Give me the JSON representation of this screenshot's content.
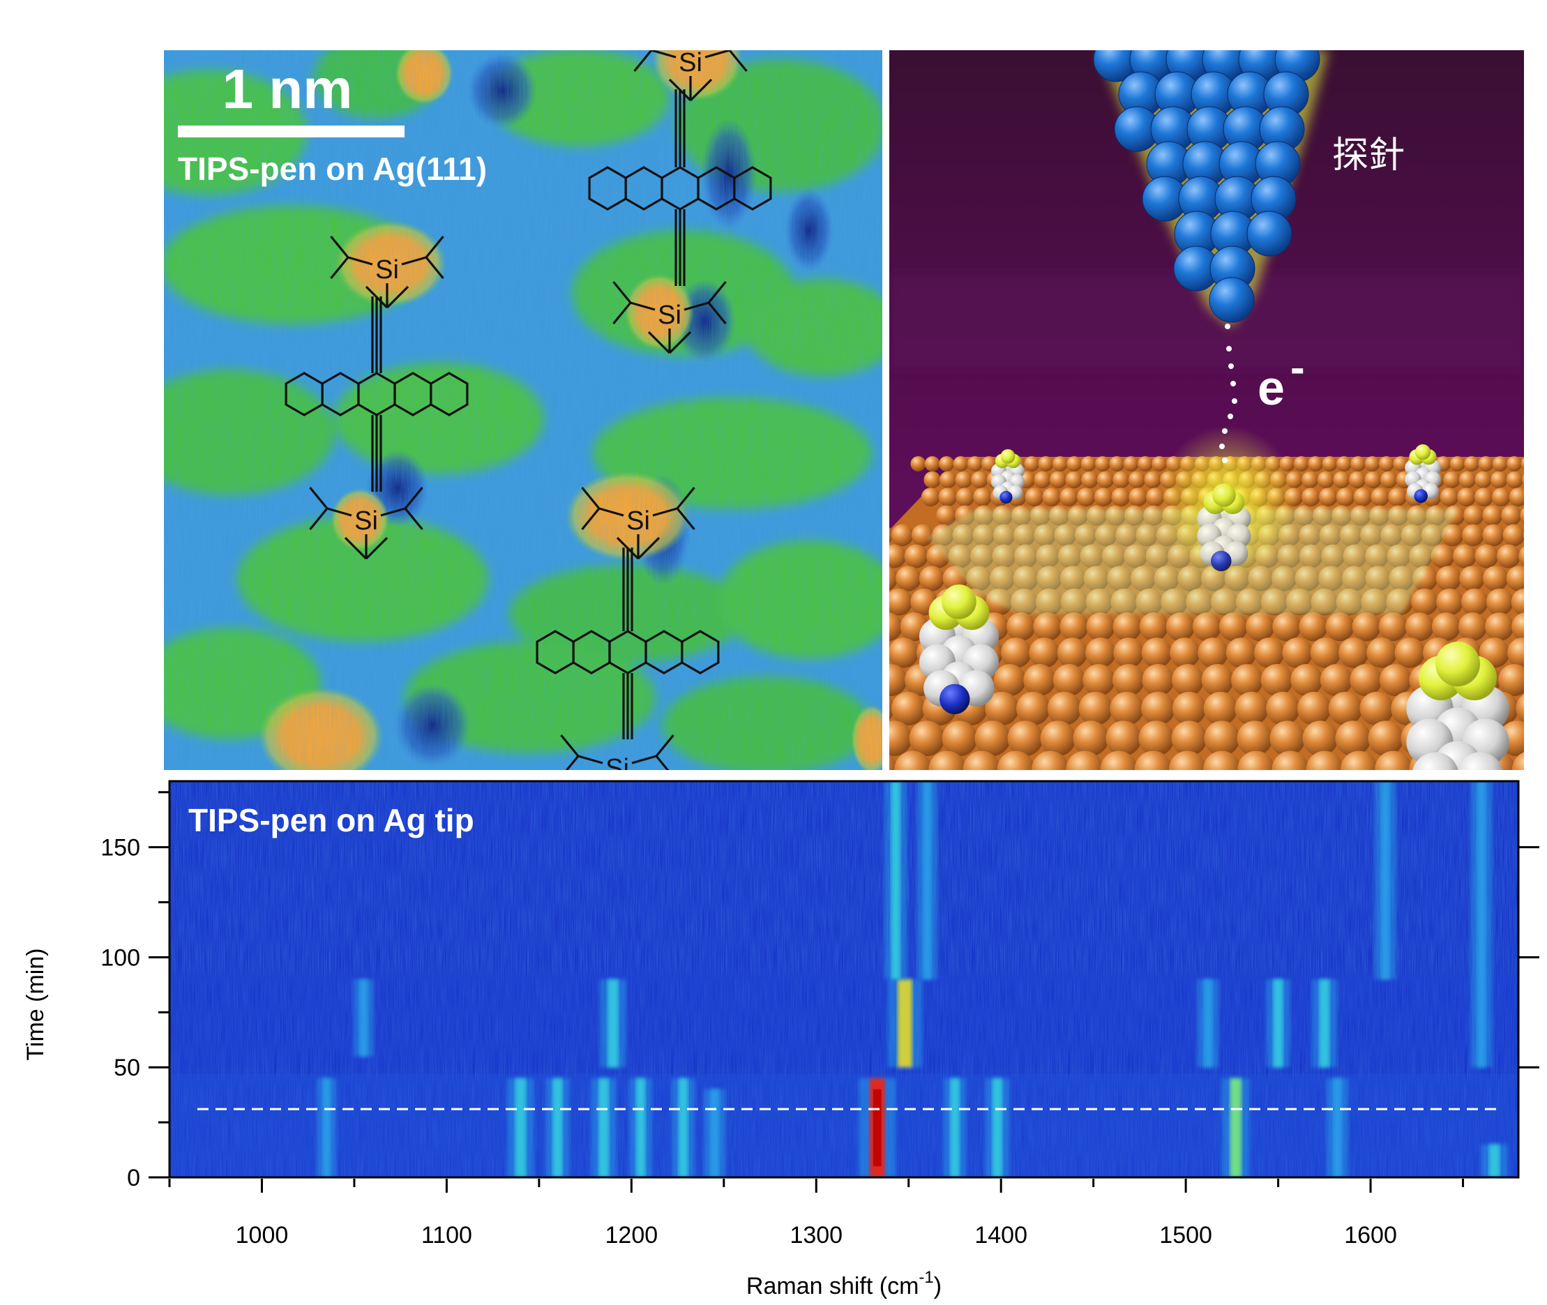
{
  "panel_stm": {
    "scale_bar_label": "1 nm",
    "caption": "TIPS-pen on Ag(111)",
    "atom_label": "Si"
  },
  "panel_tip": {
    "probe_label": "探針",
    "electron_label": "e",
    "electron_superscript": "-"
  },
  "chart_data": {
    "type": "heatmap",
    "title": "TIPS-pen on Ag tip",
    "xlabel": "Raman shift (cm",
    "xlabel_superscript": "-1",
    "xlabel_suffix": ")",
    "ylabel": "Time (min)",
    "xlim": [
      950,
      1680
    ],
    "ylim": [
      0,
      180
    ],
    "x_ticks": [
      1000,
      1100,
      1200,
      1300,
      1400,
      1500,
      1600
    ],
    "y_ticks": [
      0,
      50,
      100,
      150
    ],
    "dashed_line_time": 31,
    "bands": [
      {
        "shift": 1035,
        "t0": 0,
        "t1": 45,
        "intensity": 0.25
      },
      {
        "shift": 1055,
        "t0": 55,
        "t1": 90,
        "intensity": 0.3
      },
      {
        "shift": 1140,
        "t0": 0,
        "t1": 45,
        "intensity": 0.55
      },
      {
        "shift": 1160,
        "t0": 0,
        "t1": 45,
        "intensity": 0.45
      },
      {
        "shift": 1185,
        "t0": 0,
        "t1": 45,
        "intensity": 0.5
      },
      {
        "shift": 1190,
        "t0": 50,
        "t1": 90,
        "intensity": 0.55
      },
      {
        "shift": 1205,
        "t0": 0,
        "t1": 45,
        "intensity": 0.4
      },
      {
        "shift": 1228,
        "t0": 0,
        "t1": 45,
        "intensity": 0.4
      },
      {
        "shift": 1245,
        "t0": 0,
        "t1": 40,
        "intensity": 0.35
      },
      {
        "shift": 1333,
        "t0": 0,
        "t1": 45,
        "intensity": 1.0
      },
      {
        "shift": 1348,
        "t0": 50,
        "t1": 90,
        "intensity": 0.9
      },
      {
        "shift": 1343,
        "t0": 90,
        "t1": 180,
        "intensity": 0.4
      },
      {
        "shift": 1360,
        "t0": 90,
        "t1": 180,
        "intensity": 0.3
      },
      {
        "shift": 1375,
        "t0": 0,
        "t1": 45,
        "intensity": 0.4
      },
      {
        "shift": 1398,
        "t0": 0,
        "t1": 45,
        "intensity": 0.45
      },
      {
        "shift": 1512,
        "t0": 50,
        "t1": 90,
        "intensity": 0.35
      },
      {
        "shift": 1527,
        "t0": 0,
        "t1": 45,
        "intensity": 0.6
      },
      {
        "shift": 1550,
        "t0": 50,
        "t1": 90,
        "intensity": 0.45
      },
      {
        "shift": 1575,
        "t0": 50,
        "t1": 90,
        "intensity": 0.5
      },
      {
        "shift": 1582,
        "t0": 0,
        "t1": 45,
        "intensity": 0.35
      },
      {
        "shift": 1608,
        "t0": 90,
        "t1": 180,
        "intensity": 0.35
      },
      {
        "shift": 1660,
        "t0": 50,
        "t1": 180,
        "intensity": 0.35
      },
      {
        "shift": 1667,
        "t0": 0,
        "t1": 15,
        "intensity": 0.55
      }
    ]
  }
}
